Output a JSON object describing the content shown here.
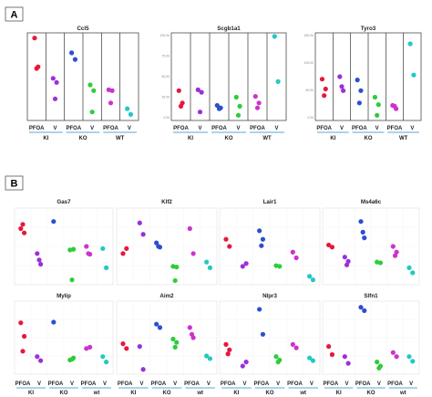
{
  "panels": [
    {
      "label": "A"
    },
    {
      "label": "B"
    }
  ],
  "colors": {
    "PFOA_KI": "#e8173c",
    "V_KI": "#9b30d9",
    "PFOA_KO": "#2b4fd0",
    "V_KO": "#2ecc3a",
    "PFOA_WT": "#cc33cc",
    "V_WT": "#22c9c3"
  },
  "panel_a_groups": [
    "KI",
    "KO",
    "WT"
  ],
  "panel_b_groups": [
    "KI",
    "KO",
    "wt"
  ],
  "treatments": [
    "PFOA",
    "V"
  ],
  "chart_data": [
    {
      "type": "scatter",
      "title": "Ccl5",
      "x": [
        "PFOA_KI",
        "V_KI",
        "PFOA_KO",
        "V_KO",
        "PFOA_WT",
        "V_WT"
      ],
      "y_ticks": [],
      "ylim": [
        0,
        100
      ],
      "series": [
        {
          "values": [
            97,
            62,
            60
          ]
        },
        {
          "values": [
            48,
            43,
            23
          ]
        },
        {
          "values": [
            79,
            71
          ]
        },
        {
          "values": [
            40,
            33,
            7
          ]
        },
        {
          "values": [
            34,
            33,
            18
          ]
        },
        {
          "values": [
            11,
            4
          ]
        }
      ]
    },
    {
      "type": "scatter",
      "title": "Scgb1a1",
      "x": [
        "PFOA_KI",
        "V_KI",
        "PFOA_KO",
        "V_KO",
        "PFOA_WT",
        "V_WT"
      ],
      "y_ticks": [
        "100.00",
        "75.00",
        "50.00",
        "25.00",
        "0.00"
      ],
      "ylim": [
        0,
        100
      ],
      "series": [
        {
          "values": [
            33,
            18,
            14
          ]
        },
        {
          "values": [
            34,
            31,
            7
          ]
        },
        {
          "values": [
            15,
            12,
            11
          ]
        },
        {
          "values": [
            25,
            14,
            3
          ]
        },
        {
          "values": [
            26,
            18,
            12
          ]
        },
        {
          "values": [
            99,
            44
          ]
        }
      ]
    },
    {
      "type": "scatter",
      "title": "Tyro3",
      "x": [
        "PFOA_KI",
        "V_KI",
        "PFOA_KO",
        "V_KO",
        "PFOA_WT",
        "V_WT"
      ],
      "y_ticks": [
        "150.00",
        "100.00",
        "50.00",
        "0.00"
      ],
      "ylim": [
        0,
        100
      ],
      "series": [
        {
          "values": [
            47,
            35,
            27
          ]
        },
        {
          "values": [
            50,
            33,
            38
          ]
        },
        {
          "values": [
            46,
            33,
            18
          ]
        },
        {
          "values": [
            25,
            16,
            3
          ]
        },
        {
          "values": [
            15,
            11,
            14
          ]
        },
        {
          "values": [
            90,
            52
          ]
        }
      ]
    },
    {
      "type": "scatter",
      "title": "Gas7",
      "x": [
        "PFOA_KI",
        "V_KI",
        "PFOA_KO",
        "V_KO",
        "PFOA_WT",
        "V_WT"
      ],
      "ylim": [
        0,
        100
      ],
      "series": [
        {
          "values": [
            75,
            69,
            81
          ]
        },
        {
          "values": [
            40,
            25,
            31
          ]
        },
        {
          "values": [
            85
          ]
        },
        {
          "values": [
            45,
            46,
            3
          ]
        },
        {
          "values": [
            50,
            39,
            40
          ]
        },
        {
          "values": [
            47,
            20
          ]
        }
      ]
    },
    {
      "type": "scatter",
      "title": "Klf2",
      "x": [
        "PFOA_KI",
        "V_KI",
        "PFOA_KO",
        "V_KO",
        "PFOA_WT",
        "V_WT"
      ],
      "ylim": [
        0,
        100
      ],
      "series": [
        {
          "values": [
            40,
            47
          ]
        },
        {
          "values": [
            83,
            67
          ]
        },
        {
          "values": [
            55,
            49,
            50
          ]
        },
        {
          "values": [
            22,
            21,
            2
          ]
        },
        {
          "values": [
            75,
            40
          ]
        },
        {
          "values": [
            28,
            20
          ]
        }
      ]
    },
    {
      "type": "scatter",
      "title": "Lair1",
      "x": [
        "PFOA_KI",
        "V_KI",
        "PFOA_KO",
        "V_KO",
        "PFOA_WT",
        "V_WT"
      ],
      "ylim": [
        0,
        100
      ],
      "series": [
        {
          "values": [
            60,
            50
          ]
        },
        {
          "values": [
            22,
            26
          ]
        },
        {
          "values": [
            72,
            60,
            51
          ]
        },
        {
          "values": [
            23,
            22
          ]
        },
        {
          "values": [
            42,
            34
          ]
        },
        {
          "values": [
            8,
            3
          ]
        }
      ]
    },
    {
      "type": "scatter",
      "title": "Ms4a6c",
      "x": [
        "PFOA_KI",
        "V_KI",
        "PFOA_KO",
        "V_KO",
        "PFOA_WT",
        "V_WT"
      ],
      "ylim": [
        0,
        100
      ],
      "series": [
        {
          "values": [
            52,
            49
          ]
        },
        {
          "values": [
            35,
            29,
            24
          ]
        },
        {
          "values": [
            85,
            62,
            70
          ]
        },
        {
          "values": [
            28,
            27
          ]
        },
        {
          "values": [
            50,
            42,
            37
          ]
        },
        {
          "values": [
            20,
            13
          ]
        }
      ]
    },
    {
      "type": "scatter",
      "title": "Mylip",
      "x": [
        "PFOA_KI",
        "V_KI",
        "PFOA_KO",
        "V_KO",
        "PFOA_WT",
        "V_WT"
      ],
      "ylim": [
        0,
        100
      ],
      "series": [
        {
          "values": [
            72,
            52,
            30
          ]
        },
        {
          "values": [
            22,
            16
          ]
        },
        {
          "values": [
            73
          ]
        },
        {
          "values": [
            17,
            20,
            18
          ]
        },
        {
          "values": [
            34,
            36
          ]
        },
        {
          "values": [
            22,
            14
          ]
        }
      ]
    },
    {
      "type": "scatter",
      "title": "Aim2",
      "x": [
        "PFOA_KI",
        "V_KI",
        "PFOA_KO",
        "V_KO",
        "PFOA_WT",
        "V_WT"
      ],
      "ylim": [
        0,
        100
      ],
      "series": [
        {
          "values": [
            41,
            34
          ]
        },
        {
          "values": [
            37,
            3
          ]
        },
        {
          "values": [
            70,
            65
          ]
        },
        {
          "values": [
            48,
            43,
            36
          ]
        },
        {
          "values": [
            65,
            50,
            55
          ]
        },
        {
          "values": [
            23,
            19
          ]
        }
      ]
    },
    {
      "type": "scatter",
      "title": "Nlpr3",
      "x": [
        "PFOA_KI",
        "V_KI",
        "PFOA_KO",
        "V_KO",
        "PFOA_WT",
        "V_WT"
      ],
      "ylim": [
        0,
        100
      ],
      "series": [
        {
          "values": [
            40,
            32,
            26
          ]
        },
        {
          "values": [
            8,
            14
          ]
        },
        {
          "values": [
            92,
            55
          ]
        },
        {
          "values": [
            22,
            17,
            14
          ]
        },
        {
          "values": [
            40,
            35
          ]
        },
        {
          "values": [
            20,
            16
          ]
        }
      ]
    },
    {
      "type": "scatter",
      "title": "Slfn1",
      "x": [
        "PFOA_KI",
        "V_KI",
        "PFOA_KO",
        "V_KO",
        "PFOA_WT",
        "V_WT"
      ],
      "ylim": [
        0,
        100
      ],
      "series": [
        {
          "values": [
            37,
            25
          ]
        },
        {
          "values": [
            22,
            12
          ]
        },
        {
          "values": [
            95,
            90
          ]
        },
        {
          "values": [
            14,
            8,
            5
          ]
        },
        {
          "values": [
            28,
            22
          ]
        },
        {
          "values": [
            22,
            15
          ]
        }
      ]
    }
  ]
}
